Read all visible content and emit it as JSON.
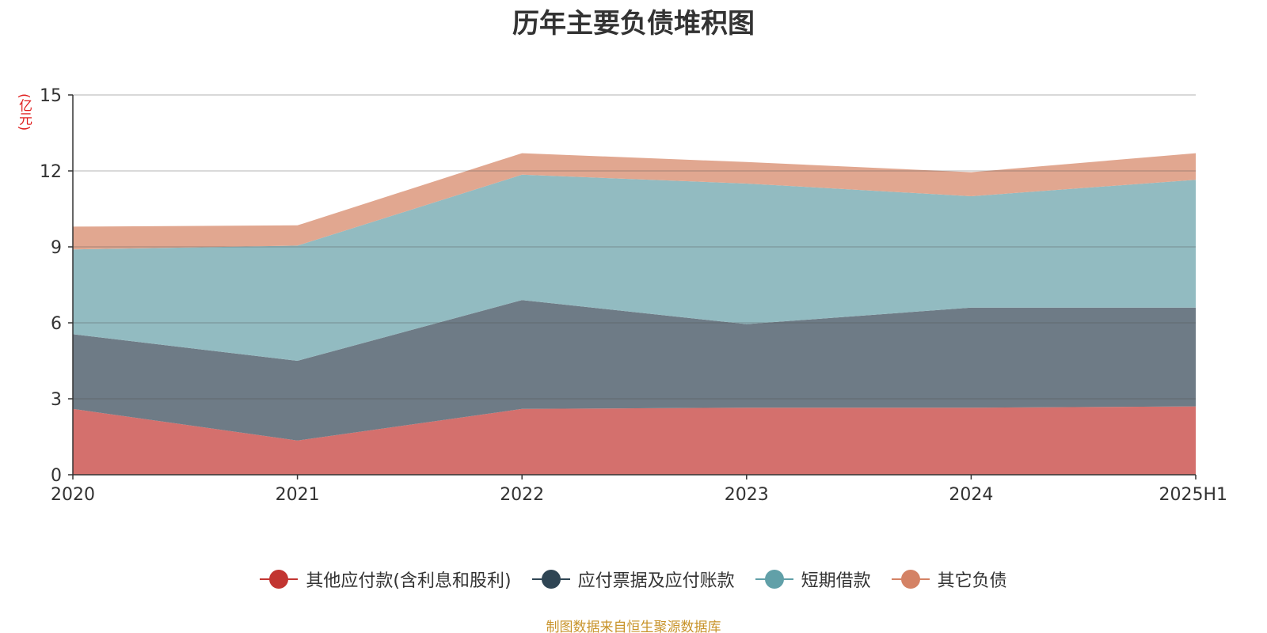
{
  "chart_data": {
    "type": "area",
    "stacked": true,
    "title": "历年主要负债堆积图",
    "unit_label": "(亿元)",
    "x": [
      "2020",
      "2021",
      "2022",
      "2023",
      "2024",
      "2025H1"
    ],
    "ylim": [
      0,
      15
    ],
    "yticks": [
      "0",
      "3",
      "6",
      "9",
      "12",
      "15"
    ],
    "grid": true,
    "legend_position": "bottom",
    "series": [
      {
        "name": "其他应付款(含利息和股利)",
        "values": [
          2.6,
          1.35,
          2.6,
          2.65,
          2.65,
          2.7
        ],
        "color": "#c23531",
        "fill": "#d4706d"
      },
      {
        "name": "应付票据及应付账款",
        "values": [
          2.95,
          3.15,
          4.3,
          3.3,
          3.95,
          3.9
        ],
        "color": "#2f4554",
        "fill": "#6e7b86"
      },
      {
        "name": "短期借款",
        "values": [
          3.35,
          4.55,
          4.95,
          5.55,
          4.4,
          5.05
        ],
        "color": "#61a0a8",
        "fill": "#92bbc1"
      },
      {
        "name": "其它负债",
        "values": [
          0.9,
          0.8,
          0.85,
          0.85,
          0.95,
          1.05
        ],
        "color": "#d48265",
        "fill": "#e1a790"
      }
    ]
  },
  "footer": {
    "source": "制图数据来自恒生聚源数据库"
  }
}
